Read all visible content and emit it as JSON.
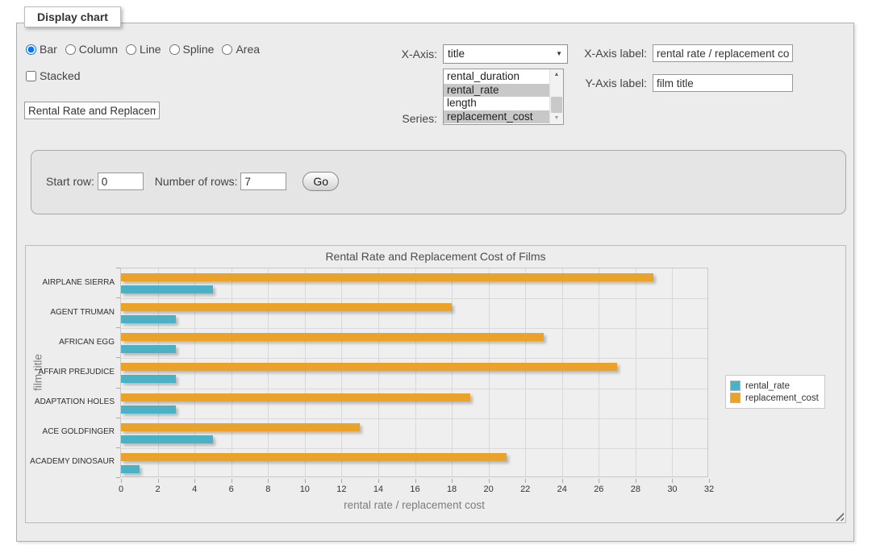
{
  "panel": {
    "legend": "Display chart"
  },
  "controls": {
    "chart_types": [
      {
        "label": "Bar",
        "selected": true
      },
      {
        "label": "Column",
        "selected": false
      },
      {
        "label": "Line",
        "selected": false
      },
      {
        "label": "Spline",
        "selected": false
      },
      {
        "label": "Area",
        "selected": false
      }
    ],
    "stacked_label": "Stacked",
    "stacked_checked": false,
    "chart_title_value": "Rental Rate and Replacement Cost of Films",
    "x_axis_label_text": "X-Axis:",
    "x_axis_value": "title",
    "series_label_text": "Series:",
    "series_options": [
      {
        "label": "rental_duration",
        "selected": false
      },
      {
        "label": "rental_rate",
        "selected": true
      },
      {
        "label": "length",
        "selected": false
      },
      {
        "label": "replacement_cost",
        "selected": true
      }
    ],
    "x_axis_caption_label": "X-Axis label:",
    "x_axis_caption_value": "rental rate / replacement cost",
    "y_axis_caption_label": "Y-Axis label:",
    "y_axis_caption_value": "film title"
  },
  "row_controls": {
    "start_row_label": "Start row:",
    "start_row_value": "0",
    "rows_label": "Number of rows:",
    "rows_value": "7",
    "go_label": "Go"
  },
  "chart_data": {
    "type": "bar",
    "orientation": "horizontal",
    "title": "Rental Rate and Replacement Cost of Films",
    "xlabel": "rental rate / replacement cost",
    "ylabel": "film title",
    "categories": [
      "AIRPLANE SIERRA",
      "AGENT TRUMAN",
      "AFRICAN EGG",
      "AFFAIR PREJUDICE",
      "ADAPTATION HOLES",
      "ACE GOLDFINGER",
      "ACADEMY DINOSAUR"
    ],
    "series": [
      {
        "name": "rental_rate",
        "color": "#4bb2c5",
        "values": [
          4.99,
          2.99,
          2.99,
          2.99,
          2.99,
          4.99,
          0.99
        ]
      },
      {
        "name": "replacement_cost",
        "color": "#eaa228",
        "values": [
          28.99,
          17.99,
          22.99,
          26.99,
          18.99,
          12.99,
          20.99
        ]
      }
    ],
    "xlim": [
      0,
      32
    ],
    "xtick_step": 2,
    "grid": true,
    "legend_position": "right"
  },
  "icons": {
    "dropdown_arrow": "▼",
    "scroll_up": "▲",
    "scroll_down": "▼"
  },
  "colors": {
    "series_rental_rate": "#4bb2c5",
    "series_replacement_cost": "#eaa228",
    "selection_gray": "#c8c8c8"
  }
}
